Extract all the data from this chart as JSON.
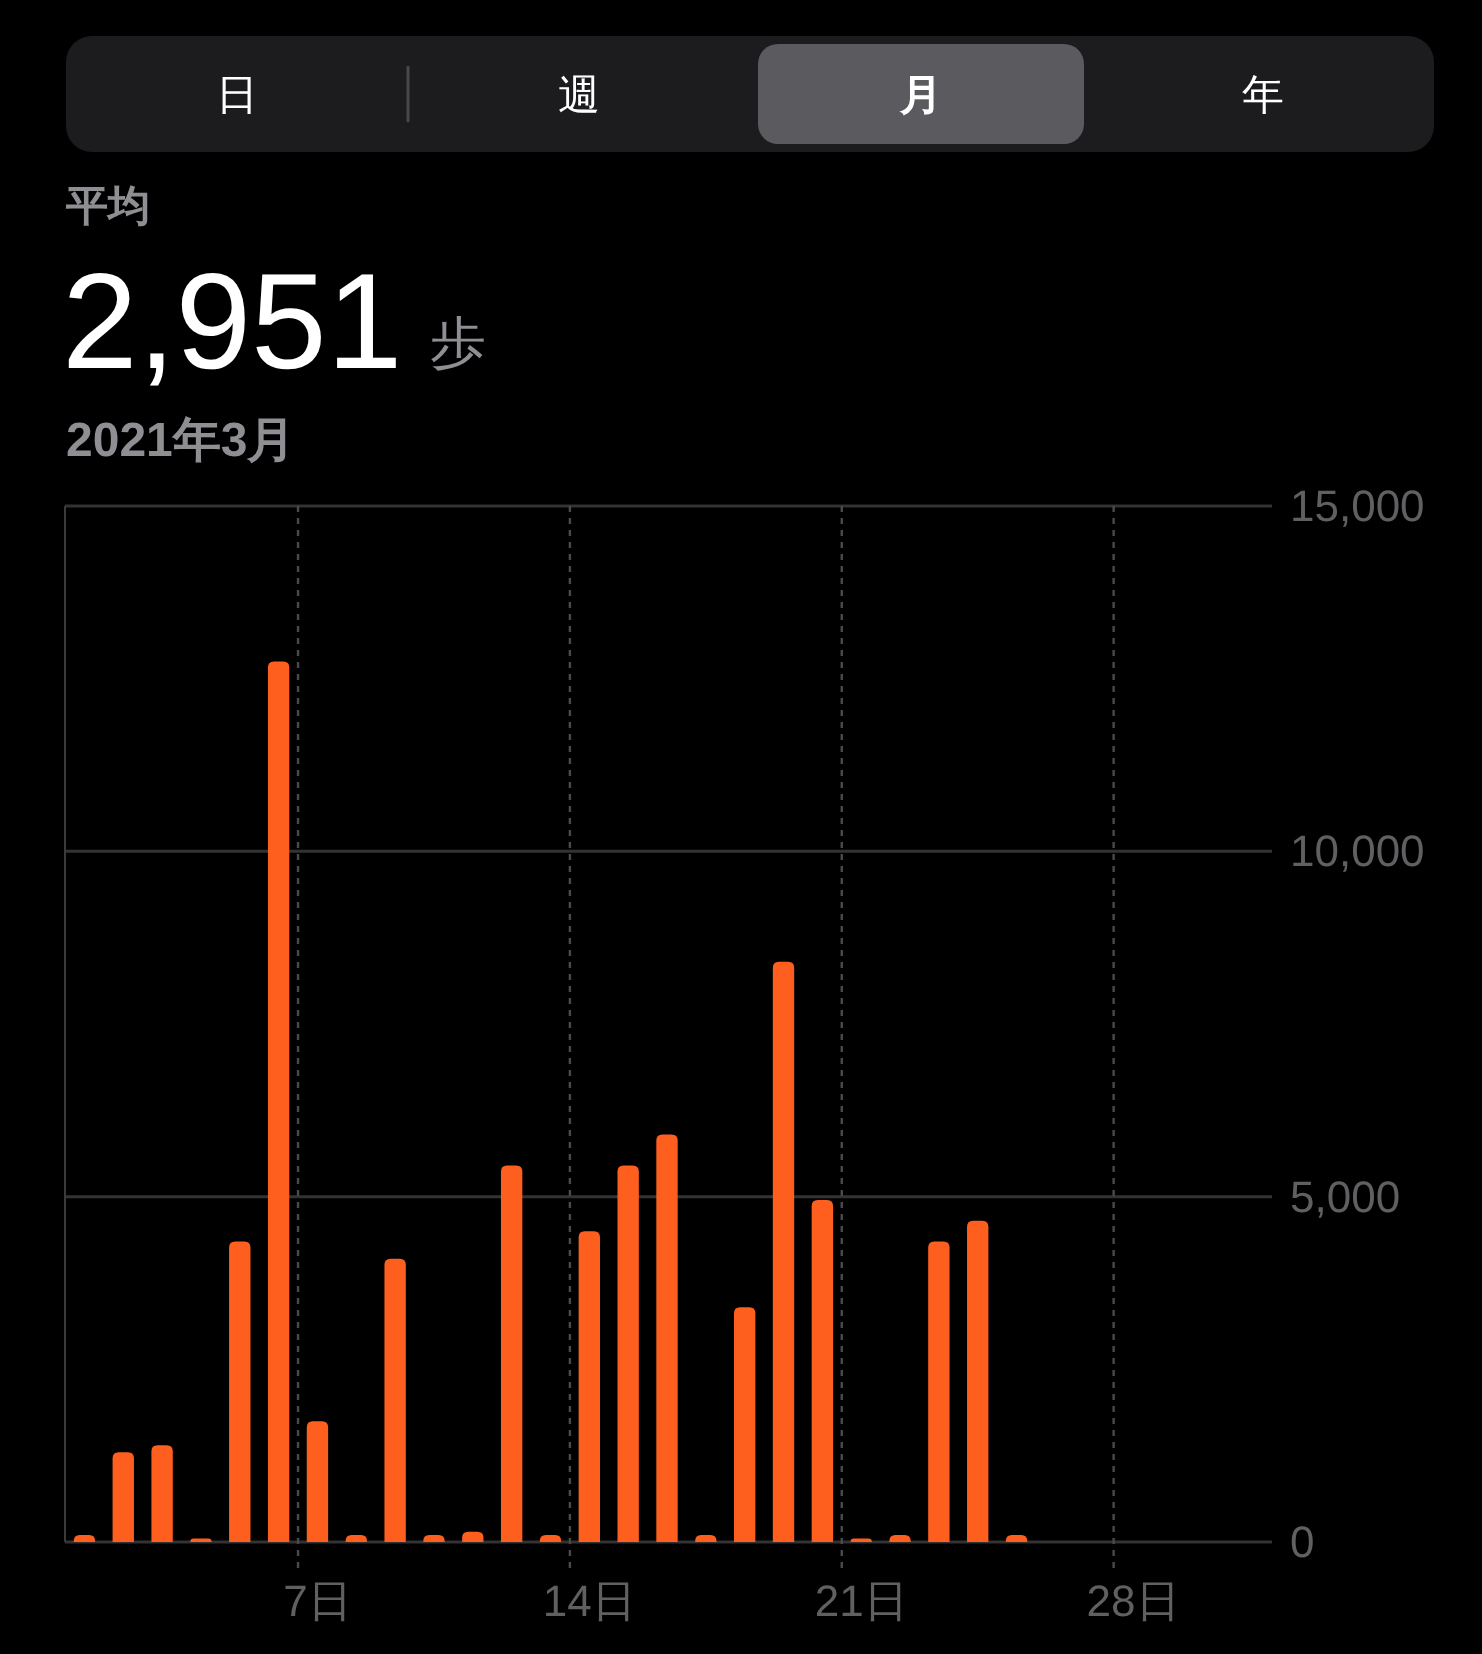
{
  "chart_data": {
    "type": "bar",
    "title": "2,951",
    "subtitle": "2021年3月",
    "annotations": [
      "日",
      "週",
      "月",
      "年",
      "平均",
      "歩"
    ],
    "categories": [
      null,
      null,
      null,
      null,
      null,
      null,
      "7日",
      null,
      null,
      null,
      null,
      null,
      null,
      "14日",
      null,
      null,
      null,
      null,
      null,
      null,
      "21日",
      null,
      null,
      null,
      null,
      null,
      null,
      "28日",
      null,
      null,
      null
    ],
    "values": [
      100,
      1300,
      1400,
      50,
      4350,
      12750,
      1750,
      100,
      4100,
      100,
      150,
      5450,
      100,
      4500,
      5450,
      5900,
      100,
      3400,
      8400,
      4950,
      50,
      100,
      4350,
      4650,
      100,
      null,
      null,
      null,
      null,
      null,
      null
    ],
    "color": "#fe5f1e",
    "ylim": [
      0,
      15000
    ],
    "yticks": [
      0,
      {
        "value": 5000,
        "label": "5,000"
      },
      {
        "value": 10000,
        "label": "10,000"
      },
      {
        "value": 15000,
        "label": "15,000"
      }
    ],
    "grid": true
  }
}
